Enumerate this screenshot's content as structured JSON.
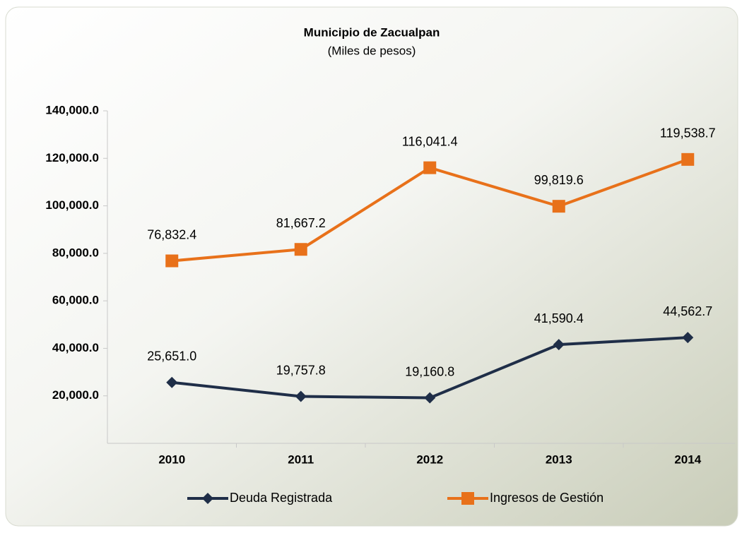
{
  "chart_data": {
    "type": "line",
    "title": "Municipio de Zacualpan",
    "subtitle": "(Miles de pesos)",
    "categories": [
      "2010",
      "2011",
      "2012",
      "2013",
      "2014"
    ],
    "series": [
      {
        "name": "Deuda Registrada",
        "color": "#1f2e48",
        "marker": "diamond",
        "values": [
          25651.0,
          19757.8,
          19160.8,
          41590.4,
          44562.7
        ],
        "value_labels": [
          "25,651.0",
          "19,757.8",
          "19,160.8",
          "41,590.4",
          "44,562.7"
        ]
      },
      {
        "name": "Ingresos de Gestión",
        "color": "#e8711a",
        "marker": "square",
        "values": [
          76832.4,
          81667.2,
          116041.4,
          99819.6,
          119538.7
        ],
        "value_labels": [
          "76,832.4",
          "81,667.2",
          "116,041.4",
          "99,819.6",
          "119,538.7"
        ]
      }
    ],
    "ylim": [
      0,
      140000
    ],
    "yticks": [
      {
        "value": 20000,
        "label": "20,000.0"
      },
      {
        "value": 40000,
        "label": "40,000.0"
      },
      {
        "value": 60000,
        "label": "60,000.0"
      },
      {
        "value": 80000,
        "label": "80,000.0"
      },
      {
        "value": 100000,
        "label": "100,000.0"
      },
      {
        "value": 120000,
        "label": "120,000.0"
      },
      {
        "value": 140000,
        "label": "140,000.0"
      }
    ],
    "legend": "bottom"
  }
}
